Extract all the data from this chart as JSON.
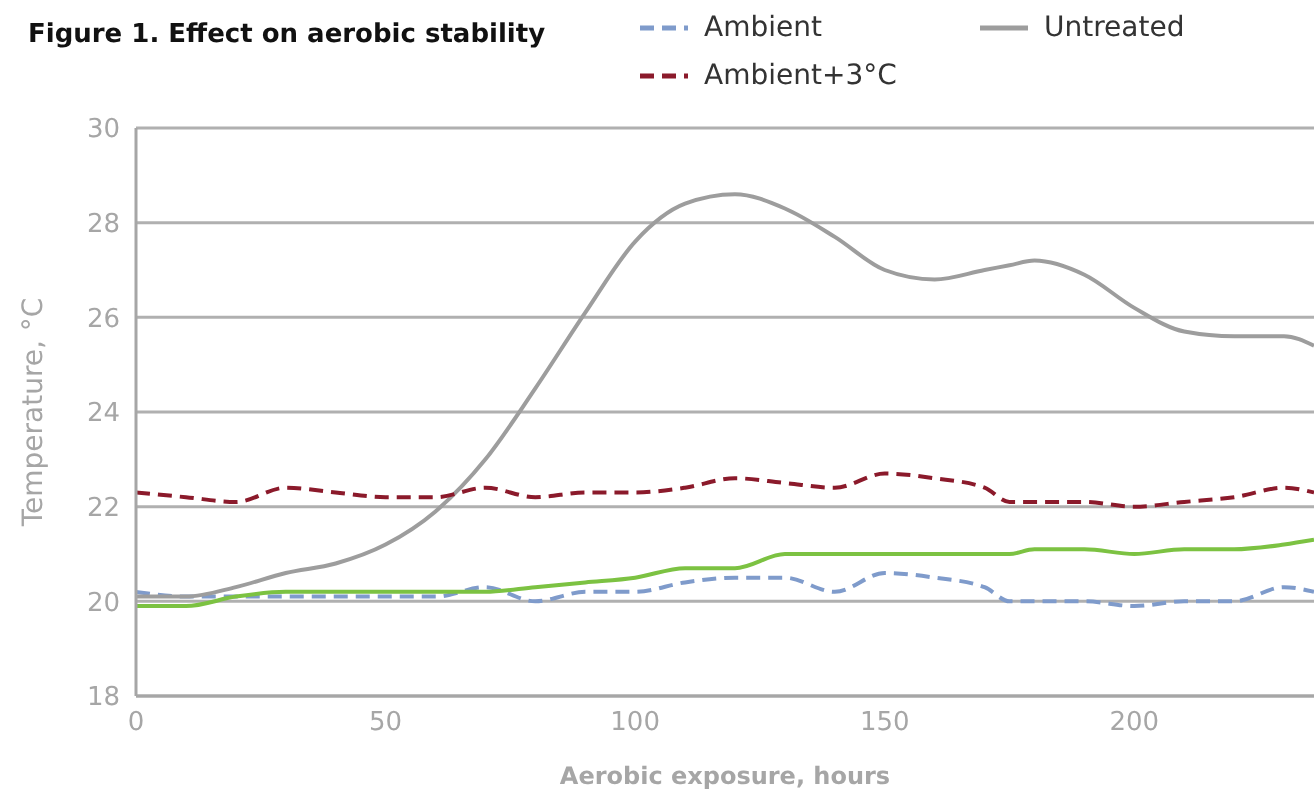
{
  "chart_data": {
    "type": "line",
    "title": "Figure 1. Effect on aerobic stability",
    "xlabel": "Aerobic exposure, hours",
    "ylabel": "Temperature, °C",
    "x": [
      0,
      10,
      20,
      30,
      40,
      50,
      60,
      70,
      80,
      90,
      100,
      110,
      120,
      130,
      140,
      150,
      160,
      170,
      175,
      180,
      190,
      200,
      210,
      220,
      230,
      236
    ],
    "series": [
      {
        "name": "Ambient",
        "color": "#7f9bcb",
        "line_style": "dashed",
        "values": [
          20.2,
          20.1,
          20.1,
          20.1,
          20.1,
          20.1,
          20.1,
          20.3,
          20.0,
          20.2,
          20.2,
          20.4,
          20.5,
          20.5,
          20.2,
          20.6,
          20.5,
          20.3,
          20.0,
          20.0,
          20.0,
          19.9,
          20.0,
          20.0,
          20.3,
          20.2
        ]
      },
      {
        "name": "Untreated",
        "color": "#9d9d9d",
        "line_style": "solid",
        "values": [
          20.1,
          20.1,
          20.3,
          20.6,
          20.8,
          21.2,
          21.9,
          23.0,
          24.5,
          26.1,
          27.6,
          28.4,
          28.6,
          28.3,
          27.7,
          27.0,
          26.8,
          27.0,
          27.1,
          27.2,
          26.9,
          26.2,
          25.7,
          25.6,
          25.6,
          25.4
        ]
      },
      {
        "name": "Ambient+3°C",
        "color": "#8b1a2b",
        "line_style": "dashed",
        "values": [
          22.3,
          22.2,
          22.1,
          22.4,
          22.3,
          22.2,
          22.2,
          22.4,
          22.2,
          22.3,
          22.3,
          22.4,
          22.6,
          22.5,
          22.4,
          22.7,
          22.6,
          22.4,
          22.1,
          22.1,
          22.1,
          22.0,
          22.1,
          22.2,
          22.4,
          22.3
        ]
      },
      {
        "color": "#7cc242",
        "line_style": "solid",
        "values": [
          19.9,
          19.9,
          20.1,
          20.2,
          20.2,
          20.2,
          20.2,
          20.2,
          20.3,
          20.4,
          20.5,
          20.7,
          20.7,
          21.0,
          21.0,
          21.0,
          21.0,
          21.0,
          21.0,
          21.1,
          21.1,
          21.0,
          21.1,
          21.1,
          21.2,
          21.3
        ]
      }
    ],
    "xlim": [
      0,
      236
    ],
    "xticks": [
      0,
      50,
      100,
      150,
      200
    ],
    "ylim": [
      18,
      30
    ],
    "yticks": [
      18,
      20,
      22,
      24,
      26,
      28,
      30
    ],
    "grid": "y",
    "legend": "top right",
    "marker": "none"
  }
}
